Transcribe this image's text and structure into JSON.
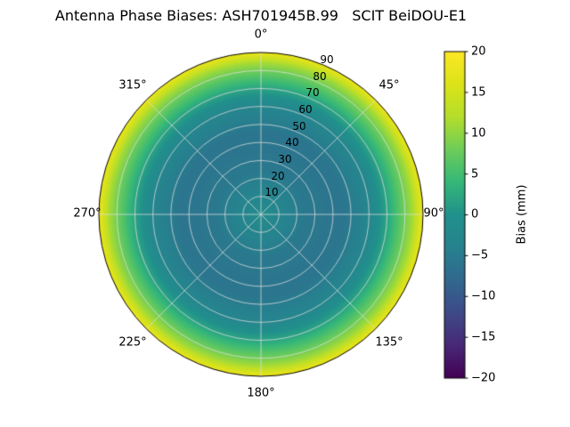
{
  "title": "Antenna Phase Biases: ASH701945B.99   SCIT BeiDOU-E1",
  "chart_data": {
    "type": "heatmap",
    "projection": "polar",
    "title": "Antenna Phase Biases: ASH701945B.99   SCIT BeiDOU-E1",
    "theta_labels": [
      "0°",
      "45°",
      "90°",
      "135°",
      "180°",
      "225°",
      "270°",
      "315°"
    ],
    "r_ticks": [
      10,
      20,
      30,
      40,
      50,
      60,
      70,
      80,
      90
    ],
    "r_tick_labels": [
      "10",
      "20",
      "30",
      "40",
      "50",
      "60",
      "70",
      "80",
      "90"
    ],
    "r_max": 90,
    "rlabel_angle_deg": 22.5,
    "clim": [
      -20,
      20
    ],
    "colormap": "viridis",
    "colormap_stops": [
      [
        0.0,
        "#440154"
      ],
      [
        0.1,
        "#482878"
      ],
      [
        0.2,
        "#3e4a89"
      ],
      [
        0.3,
        "#31688e"
      ],
      [
        0.4,
        "#26828e"
      ],
      [
        0.5,
        "#21918c"
      ],
      [
        0.6,
        "#35b779"
      ],
      [
        0.7,
        "#6dcd59"
      ],
      [
        0.8,
        "#b5de2b"
      ],
      [
        0.9,
        "#dce319"
      ],
      [
        1.0,
        "#fde725"
      ]
    ],
    "radial_profile": {
      "r": [
        0,
        10,
        25,
        45,
        60,
        70,
        78,
        84,
        90
      ],
      "bias_mm": [
        -1.5,
        -3,
        -5.5,
        -6,
        -3,
        2,
        7,
        11,
        18
      ]
    },
    "grid": true,
    "grid_color": "#dedede",
    "colorbar": {
      "label": "Bias (mm)",
      "ticks": [
        20,
        15,
        10,
        5,
        0,
        -5,
        -10,
        -15,
        -20
      ],
      "tick_labels": [
        "20",
        "15",
        "10",
        "5",
        "0",
        "−5",
        "−10",
        "−15",
        "−20"
      ]
    }
  }
}
